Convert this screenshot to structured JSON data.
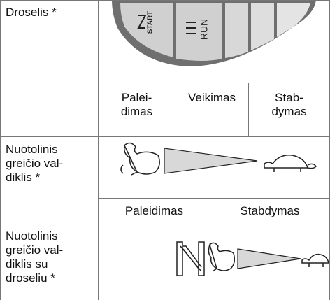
{
  "rows": [
    {
      "label": "Droselis *",
      "graphic_texts": [
        "START",
        "RUN"
      ],
      "states": [
        "Palei-\ndimas",
        "Veikimas",
        "Stab-\ndymas"
      ]
    },
    {
      "label": "Nuotolinis\ngreičio val-\ndiklis *",
      "states": [
        "Paleidimas",
        "Stabdymas"
      ]
    },
    {
      "label": "Nuotolinis\ngreičio val-\ndiklis su\ndroseliu *"
    }
  ]
}
